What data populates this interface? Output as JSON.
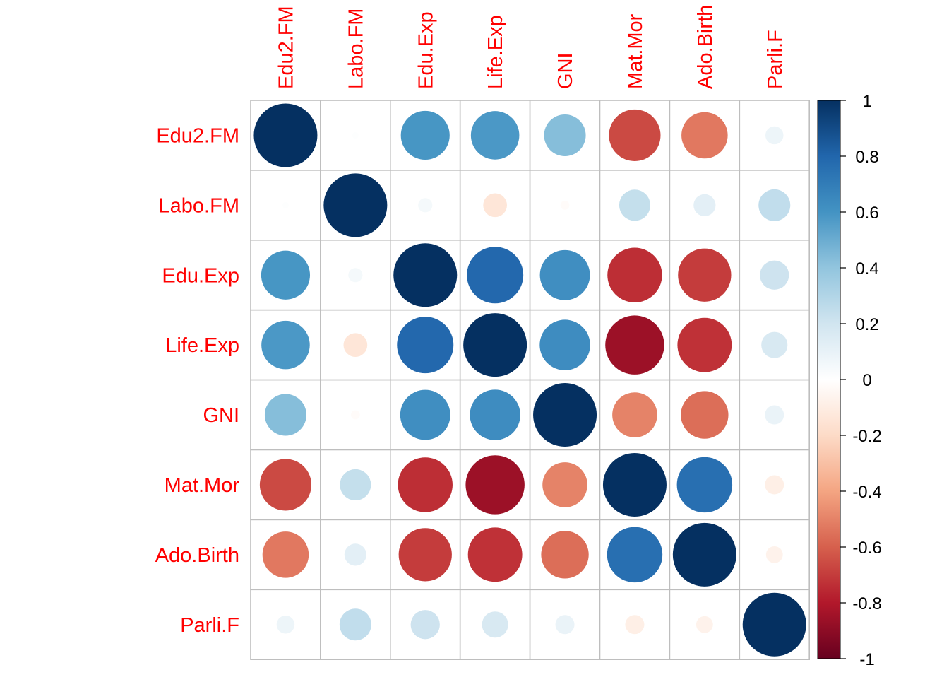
{
  "chart_data": {
    "type": "heatmap",
    "variables": [
      "Edu2.FM",
      "Labo.FM",
      "Edu.Exp",
      "Life.Exp",
      "GNI",
      "Mat.Mor",
      "Ado.Birth",
      "Parli.F"
    ],
    "matrix": [
      [
        1.0,
        0.01,
        0.59,
        0.58,
        0.43,
        -0.66,
        -0.53,
        0.08
      ],
      [
        0.01,
        1.0,
        0.05,
        -0.14,
        -0.02,
        0.24,
        0.12,
        0.25
      ],
      [
        0.59,
        0.05,
        1.0,
        0.79,
        0.62,
        -0.74,
        -0.7,
        0.21
      ],
      [
        0.58,
        -0.14,
        0.79,
        1.0,
        0.63,
        -0.86,
        -0.73,
        0.17
      ],
      [
        0.43,
        -0.02,
        0.62,
        0.63,
        1.0,
        -0.5,
        -0.56,
        0.09
      ],
      [
        -0.66,
        0.24,
        -0.74,
        -0.86,
        -0.5,
        1.0,
        0.76,
        -0.09
      ],
      [
        -0.53,
        0.12,
        -0.7,
        -0.73,
        -0.56,
        0.76,
        1.0,
        -0.07
      ],
      [
        0.08,
        0.25,
        0.21,
        0.17,
        0.09,
        -0.09,
        -0.07,
        1.0
      ]
    ],
    "color_scale": {
      "min": -1,
      "max": 1,
      "ticks": [
        "1",
        "0.8",
        "0.6",
        "0.4",
        "0.2",
        "0",
        "-0.2",
        "-0.4",
        "-0.6",
        "-0.8",
        "-1"
      ],
      "tick_values": [
        1,
        0.8,
        0.6,
        0.4,
        0.2,
        0,
        -0.2,
        -0.4,
        -0.6,
        -0.8,
        -1
      ],
      "stops": [
        "#67001F",
        "#B2182B",
        "#D6604D",
        "#F4A582",
        "#FDDBC7",
        "#FFFFFF",
        "#D1E5F0",
        "#92C5DE",
        "#4393C3",
        "#2166AC",
        "#053061"
      ]
    },
    "label_color": "#FF0000",
    "grid": true,
    "legend": "right"
  }
}
